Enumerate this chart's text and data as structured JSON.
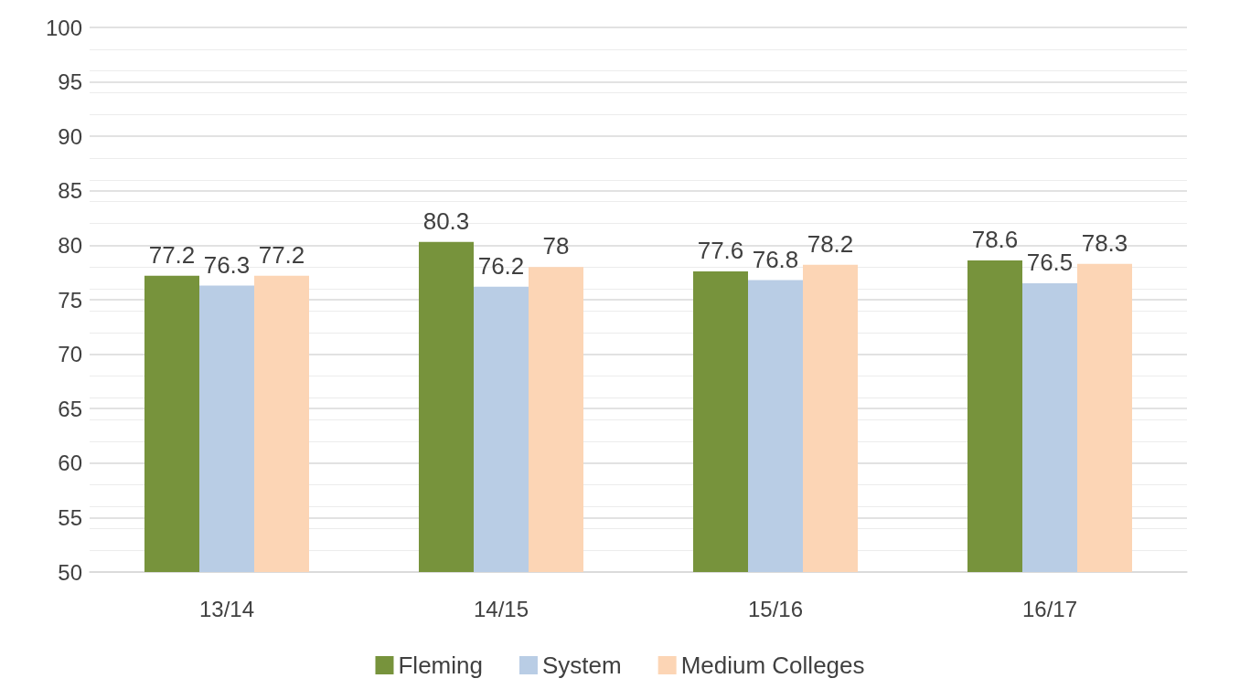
{
  "chart_data": {
    "type": "bar",
    "categories": [
      "13/14",
      "14/15",
      "15/16",
      "16/17"
    ],
    "series": [
      {
        "name": "Fleming",
        "color": "#77933c",
        "values": [
          77.2,
          80.3,
          77.6,
          78.6
        ]
      },
      {
        "name": "System",
        "color": "#b9cde5",
        "values": [
          76.3,
          76.2,
          76.8,
          76.5
        ]
      },
      {
        "name": "Medium Colleges",
        "color": "#fcd5b5",
        "values": [
          77.2,
          78,
          78.2,
          78.3
        ]
      }
    ],
    "ylim": [
      50,
      100
    ],
    "yticks": [
      50,
      55,
      60,
      65,
      70,
      75,
      80,
      85,
      90,
      95,
      100
    ],
    "grid": "y",
    "legend": "bottom",
    "data_labels": true
  }
}
